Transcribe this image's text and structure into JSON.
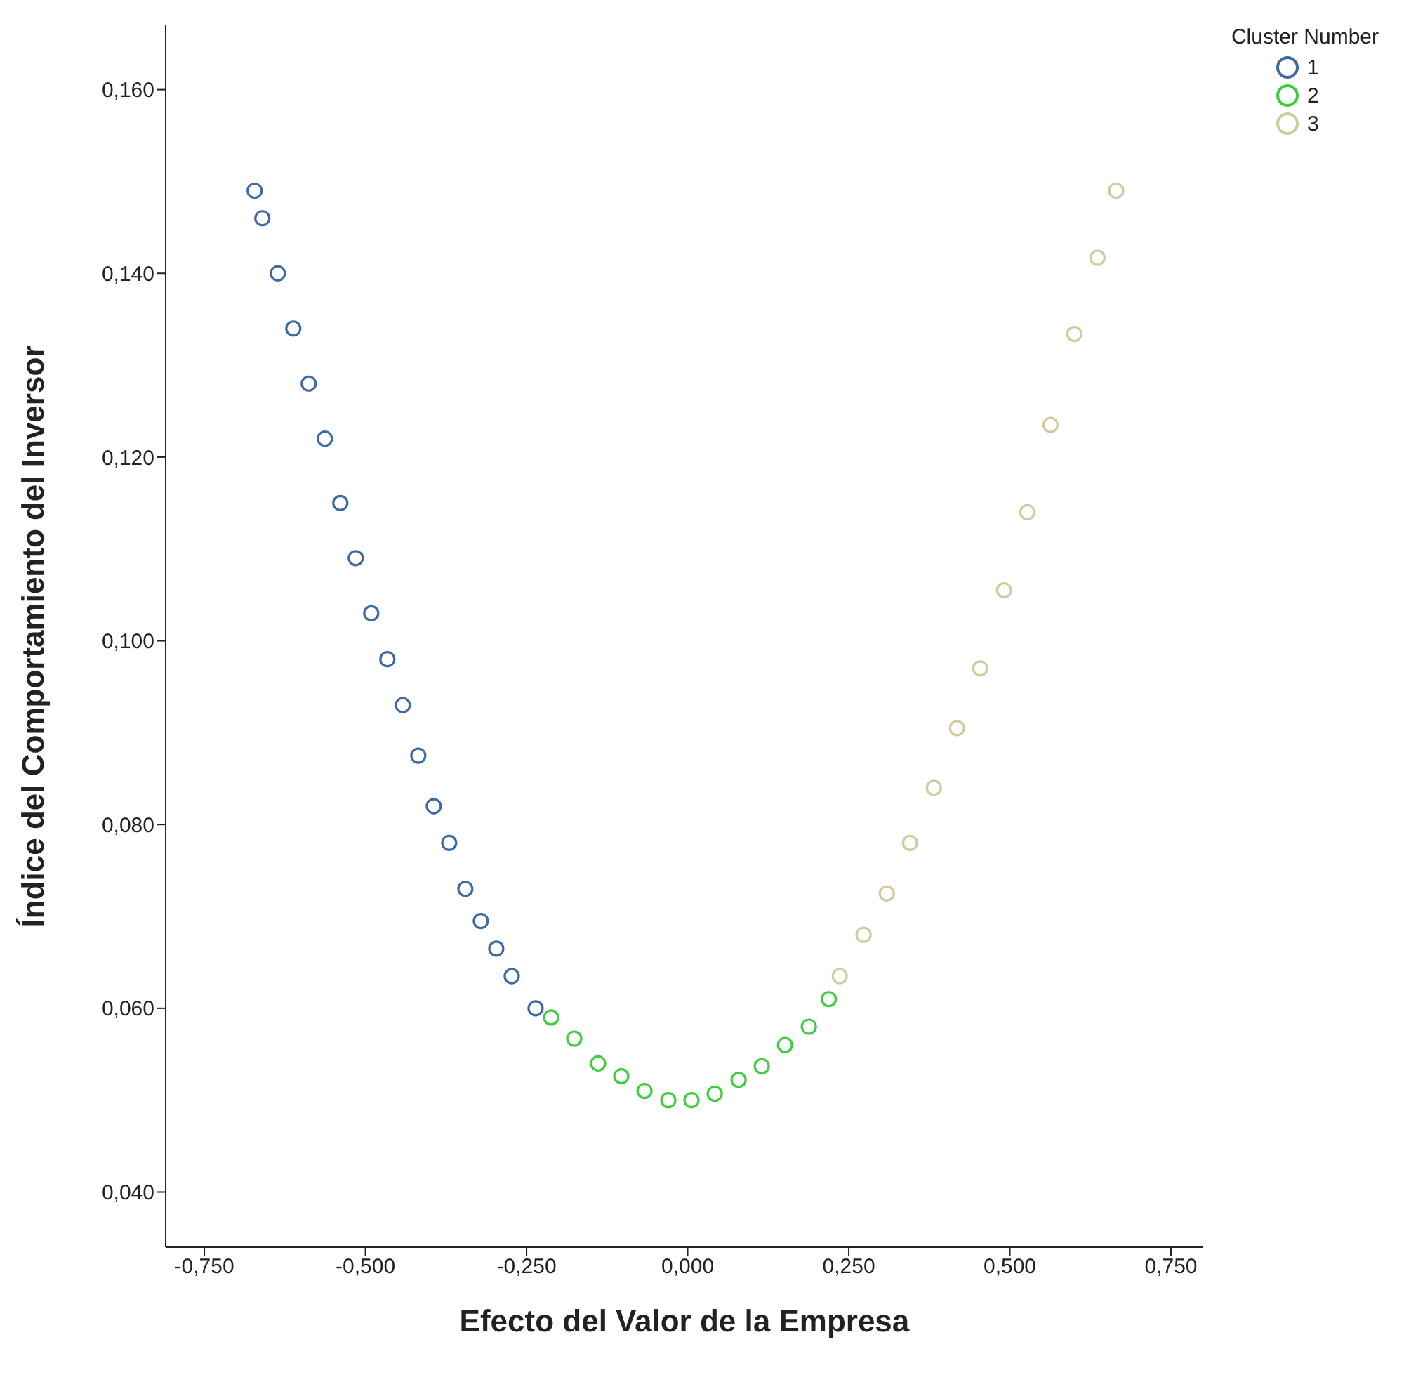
{
  "chart_data": {
    "type": "scatter",
    "xlabel": "Efecto del Valor de la Empresa",
    "ylabel": "Índice del Comportamiento del Inversor",
    "legend_title": "Cluster Number",
    "legend": "top right",
    "marker": "circle",
    "grid": false,
    "xlim": [
      -0.81,
      0.8
    ],
    "xticks": [
      {
        "value": -0.75,
        "label": "-0,750"
      },
      {
        "value": -0.5,
        "label": "-0,500"
      },
      {
        "value": -0.25,
        "label": "-0,250"
      },
      {
        "value": 0,
        "label": "0,000"
      },
      {
        "value": 0.25,
        "label": "0,250"
      },
      {
        "value": 0.5,
        "label": "0,500"
      },
      {
        "value": 0.75,
        "label": "0,750"
      }
    ],
    "ylim": [
      0.034,
      0.167
    ],
    "yticks": [
      {
        "value": 0.04,
        "label": "0,040"
      },
      {
        "value": 0.06,
        "label": "0,060"
      },
      {
        "value": 0.08,
        "label": "0,080"
      },
      {
        "value": 0.1,
        "label": "0,100"
      },
      {
        "value": 0.12,
        "label": "0,120"
      },
      {
        "value": 0.14,
        "label": "0,140"
      },
      {
        "value": 0.16,
        "label": "0,160"
      }
    ],
    "series": [
      {
        "name": "1",
        "color": "#3d6aa5",
        "x": [
          -0.672,
          -0.66,
          -0.636,
          -0.612,
          -0.588,
          -0.563,
          -0.539,
          -0.515,
          -0.491,
          -0.466,
          -0.442,
          -0.418,
          -0.394,
          -0.37,
          -0.345,
          -0.321,
          -0.297,
          -0.273,
          -0.236
        ],
        "values": [
          0.149,
          0.146,
          0.14,
          0.134,
          0.128,
          0.122,
          0.115,
          0.109,
          0.103,
          0.098,
          0.093,
          0.0875,
          0.082,
          0.078,
          0.073,
          0.0695,
          0.0665,
          0.0635,
          0.06
        ]
      },
      {
        "name": "2",
        "color": "#3fcc3f",
        "x": [
          -0.212,
          -0.176,
          -0.139,
          -0.103,
          -0.067,
          -0.03,
          0.006,
          0.042,
          0.079,
          0.115,
          0.151,
          0.188,
          0.219
        ],
        "values": [
          0.059,
          0.0567,
          0.054,
          0.0526,
          0.051,
          0.05,
          0.05,
          0.0507,
          0.0522,
          0.0537,
          0.056,
          0.058,
          0.061
        ]
      },
      {
        "name": "3",
        "color": "#cfcb9c",
        "x": [
          0.236,
          0.273,
          0.309,
          0.345,
          0.382,
          0.418,
          0.454,
          0.491,
          0.527,
          0.563,
          0.6,
          0.636,
          0.665
        ],
        "values": [
          0.0635,
          0.068,
          0.0725,
          0.078,
          0.084,
          0.0905,
          0.097,
          0.1055,
          0.114,
          0.1235,
          0.1334,
          0.1417,
          0.149
        ]
      }
    ]
  }
}
